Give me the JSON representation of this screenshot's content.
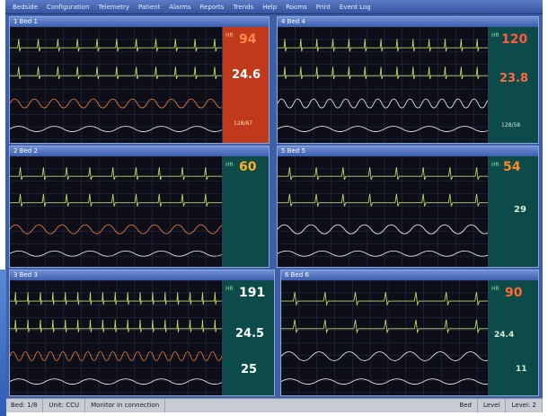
{
  "menu": {
    "items": [
      "Bedside",
      "Configuration",
      "Telemetry",
      "Patient",
      "Alarms",
      "Reports",
      "Trends",
      "Help",
      "Rooms",
      "Print",
      "Event Log"
    ]
  },
  "panels": [
    {
      "id": "p1",
      "title": "1  Bed 1",
      "color_big": "#ff3b3b",
      "hr": "94",
      "mid": "24.6",
      "bp": "128/67"
    },
    {
      "id": "p2",
      "title": "4  Bed 4",
      "color_big": "#ff5a3a",
      "hr": "120",
      "mid": "23.8",
      "bp": "128/58"
    },
    {
      "id": "p3",
      "title": "2  Bed 2",
      "color_big": "#ffb020",
      "hr": "60",
      "mid": "",
      "bp": ""
    },
    {
      "id": "p4",
      "title": "5  Bed 5",
      "color_big": "#ff8a20",
      "hr": "54",
      "mid": "29",
      "bp": ""
    },
    {
      "id": "p5",
      "title": "3  Bed 3",
      "color_big": "#ffffff",
      "hr": "191",
      "mid": "24.5",
      "bp": "25"
    },
    {
      "id": "p6",
      "title": "6  Bed 6",
      "color_big": "#ff6a30",
      "hr": "90",
      "mid": "24.4",
      "bp": "11"
    }
  ],
  "status": {
    "c1": "Bed: 1/8",
    "c2": "Unit: CCU",
    "c3": "Monitor in connection",
    "c4": "Bed",
    "c5": "Level",
    "c6": "Level: 2"
  },
  "colors": {
    "accent": "#3f5fa6",
    "panel_bg": "#0d0e18",
    "ecg": "#b7d96a",
    "resp": "#e07a3a",
    "pleth": "#e6e6e6",
    "numeric_bg_red": "#c0391b",
    "numeric_bg_teal": "#0d4a4a"
  }
}
